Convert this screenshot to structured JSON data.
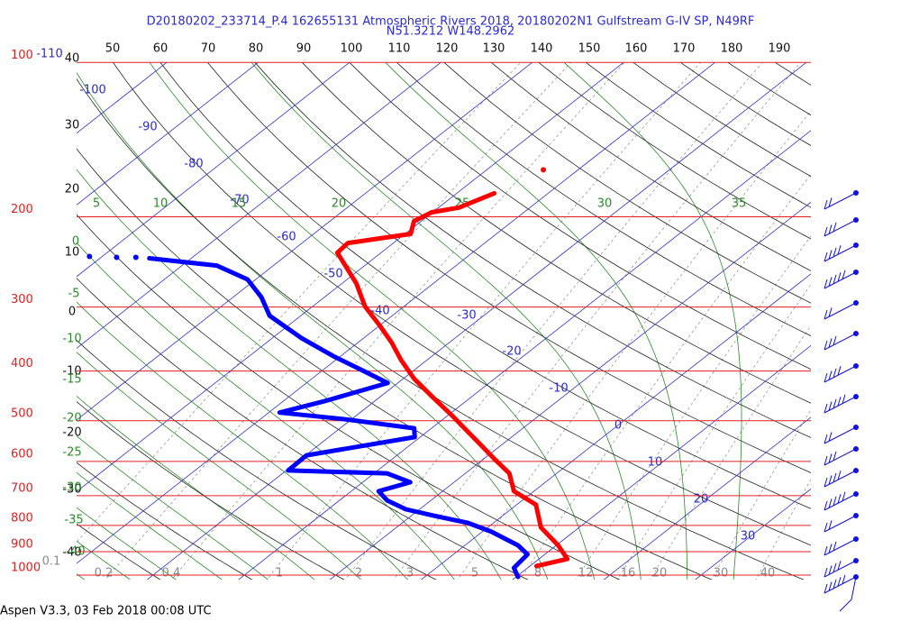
{
  "chart_data": {
    "type": "skewt",
    "title": "D20180202_233714_P.4 162655131 Atmospheric Rivers 2018, 20180202N1 Gulfstream G-IV SP, N49RF",
    "subtitle": "N51.3212 W148.2962",
    "footer": "Aspen V3.3, 03 Feb 2018  00:08 UTC",
    "log_scale": true,
    "ylim": [
      1000,
      100
    ],
    "yticks": [
      100,
      200,
      300,
      400,
      500,
      600,
      700,
      800,
      900,
      1000
    ],
    "isotherm_labels": [
      -110,
      -100,
      -90,
      -80,
      -70,
      -60,
      -50,
      -40,
      -30,
      -20,
      -10,
      0,
      10,
      20,
      30
    ],
    "dry_adiabat_labels_top": [
      50,
      60,
      70,
      80,
      90,
      100,
      110,
      120,
      130,
      140,
      150,
      160,
      170,
      180,
      190
    ],
    "dry_adiabat_labels_left": [
      40,
      30,
      20,
      10,
      0,
      -10,
      -20,
      -30,
      -40
    ],
    "moist_adiabat_labels_top": [
      5,
      10,
      15,
      20,
      25,
      30,
      35
    ],
    "moist_adiabat_labels_left": [
      0,
      -5,
      -10,
      -15,
      -20,
      -25,
      -30,
      -35,
      -40
    ],
    "mixing_ratio_labels": [
      0.1,
      0.2,
      0.4,
      1,
      2,
      3,
      5,
      8,
      12,
      16,
      20,
      30,
      40
    ],
    "series": [
      {
        "color": "#ff0000",
        "pressure": [
          960,
          930,
          875,
          807,
          729,
          686,
          633,
          596,
          549,
          486,
          449,
          414,
          381,
          352,
          324,
          299,
          270,
          235,
          225,
          216,
          204,
          196,
          192,
          180,
          null,
          162
        ],
        "values": [
          10.7,
          13.1,
          10.2,
          5.8,
          2.1,
          -2.2,
          -5.2,
          -8.6,
          -13.1,
          -19.8,
          -24.3,
          -28.8,
          -32.8,
          -36.3,
          -40.3,
          -44.3,
          -48.4,
          -54.8,
          -55.0,
          -49.4,
          -50.8,
          -50.1,
          -47.8,
          -45.9,
          null,
          -43.8
        ]
      },
      {
        "color": "#0000ff",
        "pressure": [
          1008,
          968,
          911,
          875,
          823,
          791,
          765,
          744,
          715,
          686,
          659,
          633,
          625,
          584,
          538,
          517,
          496,
          482,
          458,
          422,
          397,
          374,
          345,
          312,
          287,
          265,
          249,
          241,
          null,
          240,
          null,
          240,
          null,
          239
        ],
        "values": [
          10.2,
          8.5,
          8.1,
          5.8,
          1.0,
          -2.8,
          -7.7,
          -11.5,
          -14.8,
          -17.0,
          -14.8,
          -18.6,
          -29.8,
          -29.9,
          -20.6,
          -21.9,
          -31.0,
          -38.8,
          -35.5,
          -31.1,
          -36.0,
          -40.8,
          -46.8,
          -53.4,
          -56.9,
          -60.9,
          -66.2,
          -74.6,
          null,
          -76.2,
          null,
          -78.3,
          null,
          -81.4
        ]
      }
    ]
  }
}
